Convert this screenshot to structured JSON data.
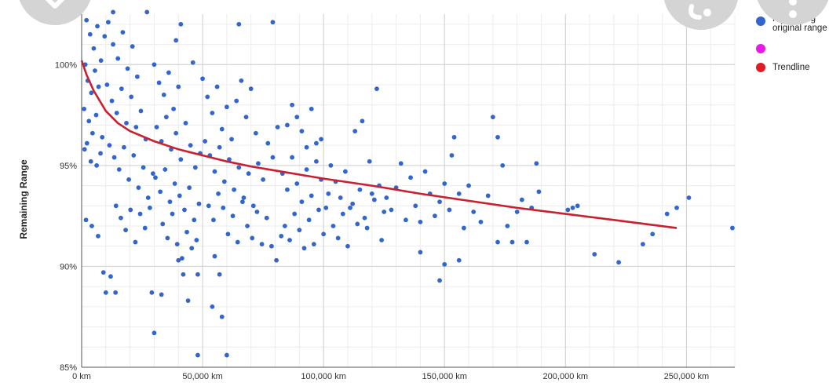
{
  "chart_data": {
    "type": "scatter",
    "title": "",
    "xlabel": "",
    "ylabel": "Remaining Range",
    "xlim": [
      0,
      270000
    ],
    "ylim": [
      85,
      102.5
    ],
    "x_ticks": [
      {
        "value": 0,
        "label": "0 km"
      },
      {
        "value": 50000,
        "label": "50,000 km"
      },
      {
        "value": 100000,
        "label": "100,000 km"
      },
      {
        "value": 150000,
        "label": "150,000 km"
      },
      {
        "value": 200000,
        "label": "200,000 km"
      },
      {
        "value": 250000,
        "label": "250,000 km"
      }
    ],
    "y_ticks": [
      {
        "value": 85,
        "label": "85%"
      },
      {
        "value": 90,
        "label": "90%"
      },
      {
        "value": 95,
        "label": "95%"
      },
      {
        "value": 100,
        "label": "100%"
      }
    ],
    "grid": true,
    "legend_position": "right",
    "legend": [
      {
        "label": "Remaining original range",
        "color": "#3366cc"
      },
      {
        "label": "",
        "color": "#e619e6"
      },
      {
        "label": "Trendline",
        "color": "#e01b24"
      }
    ],
    "series": [
      {
        "name": "Remaining original range",
        "color": "#3366cc",
        "points": [
          [
            2000,
            102.2
          ],
          [
            3500,
            101.5
          ],
          [
            5000,
            100.8
          ],
          [
            6500,
            101.9
          ],
          [
            8000,
            100.2
          ],
          [
            1500,
            100.0
          ],
          [
            2500,
            99.2
          ],
          [
            4000,
            98.6
          ],
          [
            5500,
            99.7
          ],
          [
            7000,
            98.9
          ],
          [
            1000,
            97.8
          ],
          [
            3000,
            97.2
          ],
          [
            4500,
            96.6
          ],
          [
            6000,
            97.5
          ],
          [
            8500,
            96.4
          ],
          [
            1200,
            95.8
          ],
          [
            2200,
            96.1
          ],
          [
            3800,
            95.2
          ],
          [
            6200,
            95.0
          ],
          [
            7800,
            95.6
          ],
          [
            1800,
            92.3
          ],
          [
            4200,
            92.0
          ],
          [
            6800,
            91.5
          ],
          [
            9000,
            89.7
          ],
          [
            10000,
            88.7
          ],
          [
            12000,
            89.5
          ],
          [
            14000,
            88.7
          ],
          [
            9500,
            101.4
          ],
          [
            11000,
            102.1
          ],
          [
            13000,
            101.0
          ],
          [
            15000,
            100.3
          ],
          [
            17000,
            101.6
          ],
          [
            19000,
            99.8
          ],
          [
            21000,
            100.9
          ],
          [
            23000,
            99.4
          ],
          [
            10500,
            99.0
          ],
          [
            12500,
            98.2
          ],
          [
            14500,
            97.6
          ],
          [
            16500,
            98.8
          ],
          [
            18500,
            97.1
          ],
          [
            20500,
            98.4
          ],
          [
            22500,
            96.9
          ],
          [
            24500,
            97.7
          ],
          [
            26500,
            96.3
          ],
          [
            11500,
            96.0
          ],
          [
            13500,
            95.4
          ],
          [
            15500,
            94.8
          ],
          [
            17500,
            95.9
          ],
          [
            19500,
            94.3
          ],
          [
            21500,
            95.5
          ],
          [
            23500,
            93.9
          ],
          [
            25500,
            94.9
          ],
          [
            27500,
            93.4
          ],
          [
            29500,
            94.6
          ],
          [
            14200,
            93.0
          ],
          [
            16200,
            92.4
          ],
          [
            18200,
            91.8
          ],
          [
            20200,
            92.8
          ],
          [
            22200,
            91.2
          ],
          [
            24200,
            92.6
          ],
          [
            26200,
            91.9
          ],
          [
            28200,
            92.9
          ],
          [
            13000,
            102.6
          ],
          [
            27000,
            102.6
          ],
          [
            30000,
            100.0
          ],
          [
            32000,
            99.1
          ],
          [
            34000,
            98.5
          ],
          [
            36000,
            99.6
          ],
          [
            38000,
            97.8
          ],
          [
            40000,
            98.9
          ],
          [
            31000,
            96.9
          ],
          [
            33000,
            96.2
          ],
          [
            35000,
            97.4
          ],
          [
            37000,
            95.8
          ],
          [
            39000,
            96.6
          ],
          [
            41000,
            95.3
          ],
          [
            43000,
            97.1
          ],
          [
            45000,
            96.0
          ],
          [
            47000,
            94.9
          ],
          [
            49000,
            95.6
          ],
          [
            30500,
            94.4
          ],
          [
            32500,
            93.7
          ],
          [
            34500,
            94.8
          ],
          [
            36500,
            93.2
          ],
          [
            38500,
            94.1
          ],
          [
            40500,
            93.5
          ],
          [
            42500,
            92.8
          ],
          [
            44500,
            93.9
          ],
          [
            46500,
            92.3
          ],
          [
            48500,
            93.1
          ],
          [
            33500,
            92.1
          ],
          [
            35500,
            91.4
          ],
          [
            37500,
            92.6
          ],
          [
            39500,
            91.1
          ],
          [
            41500,
            90.4
          ],
          [
            43500,
            91.7
          ],
          [
            45500,
            90.9
          ],
          [
            47500,
            91.3
          ],
          [
            40000,
            90.3
          ],
          [
            42000,
            89.6
          ],
          [
            48000,
            89.6
          ],
          [
            29000,
            88.7
          ],
          [
            33000,
            88.6
          ],
          [
            30000,
            86.7
          ],
          [
            44000,
            88.3
          ],
          [
            54000,
            88.0
          ],
          [
            58000,
            87.5
          ],
          [
            48000,
            85.6
          ],
          [
            60000,
            85.6
          ],
          [
            39000,
            101.2
          ],
          [
            41000,
            102.0
          ],
          [
            46000,
            100.1
          ],
          [
            50000,
            99.3
          ],
          [
            52000,
            98.4
          ],
          [
            54000,
            97.6
          ],
          [
            56000,
            98.9
          ],
          [
            58000,
            96.8
          ],
          [
            60000,
            97.9
          ],
          [
            62000,
            96.3
          ],
          [
            64000,
            98.2
          ],
          [
            66000,
            99.2
          ],
          [
            68000,
            97.4
          ],
          [
            70000,
            98.8
          ],
          [
            72000,
            96.6
          ],
          [
            51000,
            96.2
          ],
          [
            53000,
            95.5
          ],
          [
            55000,
            94.7
          ],
          [
            57000,
            95.9
          ],
          [
            59000,
            94.2
          ],
          [
            61000,
            95.3
          ],
          [
            63000,
            93.8
          ],
          [
            65000,
            94.9
          ],
          [
            67000,
            93.4
          ],
          [
            69000,
            94.6
          ],
          [
            71000,
            93.0
          ],
          [
            73000,
            95.1
          ],
          [
            75000,
            94.3
          ],
          [
            77000,
            96.1
          ],
          [
            79000,
            95.4
          ],
          [
            81000,
            96.9
          ],
          [
            52500,
            93.0
          ],
          [
            54500,
            92.3
          ],
          [
            56500,
            93.6
          ],
          [
            58500,
            92.9
          ],
          [
            60500,
            91.6
          ],
          [
            62500,
            92.5
          ],
          [
            64500,
            91.2
          ],
          [
            66500,
            93.2
          ],
          [
            68500,
            92.0
          ],
          [
            70500,
            91.4
          ],
          [
            72500,
            92.7
          ],
          [
            74500,
            91.1
          ],
          [
            76500,
            92.4
          ],
          [
            78500,
            91.0
          ],
          [
            80500,
            90.3
          ],
          [
            82500,
            91.5
          ],
          [
            65000,
            102.0
          ],
          [
            79000,
            102.1
          ],
          [
            55000,
            90.5
          ],
          [
            57000,
            89.6
          ],
          [
            83000,
            94.6
          ],
          [
            85000,
            93.8
          ],
          [
            87000,
            95.4
          ],
          [
            89000,
            94.1
          ],
          [
            91000,
            93.2
          ],
          [
            93000,
            94.8
          ],
          [
            95000,
            93.5
          ],
          [
            97000,
            96.1
          ],
          [
            99000,
            94.3
          ],
          [
            101000,
            92.9
          ],
          [
            84000,
            92.0
          ],
          [
            86000,
            91.3
          ],
          [
            88000,
            92.6
          ],
          [
            90000,
            91.8
          ],
          [
            92000,
            90.9
          ],
          [
            94000,
            92.3
          ],
          [
            96000,
            91.1
          ],
          [
            98000,
            92.8
          ],
          [
            100000,
            91.6
          ],
          [
            102000,
            93.6
          ],
          [
            85000,
            97.0
          ],
          [
            87000,
            98.0
          ],
          [
            89000,
            97.4
          ],
          [
            91000,
            96.7
          ],
          [
            93000,
            95.9
          ],
          [
            95000,
            97.8
          ],
          [
            97000,
            95.2
          ],
          [
            99000,
            96.3
          ],
          [
            103000,
            95.0
          ],
          [
            105000,
            94.2
          ],
          [
            107000,
            93.4
          ],
          [
            109000,
            94.7
          ],
          [
            111000,
            92.9
          ],
          [
            113000,
            96.7
          ],
          [
            115000,
            93.8
          ],
          [
            117000,
            92.4
          ],
          [
            119000,
            95.2
          ],
          [
            121000,
            93.3
          ],
          [
            123000,
            94.0
          ],
          [
            125000,
            92.7
          ],
          [
            104000,
            92.0
          ],
          [
            106000,
            91.4
          ],
          [
            108000,
            92.6
          ],
          [
            110000,
            91.0
          ],
          [
            112000,
            93.1
          ],
          [
            114000,
            92.1
          ],
          [
            116000,
            97.2
          ],
          [
            118000,
            91.9
          ],
          [
            120000,
            93.6
          ],
          [
            122000,
            98.8
          ],
          [
            124000,
            91.3
          ],
          [
            126000,
            93.4
          ],
          [
            128000,
            92.8
          ],
          [
            130000,
            93.9
          ],
          [
            132000,
            95.1
          ],
          [
            134000,
            92.3
          ],
          [
            136000,
            94.4
          ],
          [
            138000,
            93.0
          ],
          [
            140000,
            92.2
          ],
          [
            142000,
            94.7
          ],
          [
            144000,
            93.6
          ],
          [
            146000,
            92.5
          ],
          [
            148000,
            93.2
          ],
          [
            150000,
            94.1
          ],
          [
            152000,
            92.8
          ],
          [
            154000,
            96.4
          ],
          [
            156000,
            93.6
          ],
          [
            158000,
            91.9
          ],
          [
            160000,
            94.0
          ],
          [
            162000,
            92.7
          ],
          [
            140000,
            90.7
          ],
          [
            150000,
            90.1
          ],
          [
            153000,
            95.5
          ],
          [
            156000,
            90.3
          ],
          [
            148000,
            89.3
          ],
          [
            165000,
            92.2
          ],
          [
            168000,
            93.5
          ],
          [
            170000,
            97.4
          ],
          [
            172000,
            96.4
          ],
          [
            174000,
            95.0
          ],
          [
            176000,
            92.0
          ],
          [
            178000,
            91.2
          ],
          [
            180000,
            92.7
          ],
          [
            182000,
            93.3
          ],
          [
            184000,
            91.2
          ],
          [
            186000,
            92.9
          ],
          [
            188000,
            95.1
          ],
          [
            189000,
            93.7
          ],
          [
            172000,
            91.2
          ],
          [
            201000,
            92.8
          ],
          [
            203000,
            92.9
          ],
          [
            205000,
            93.0
          ],
          [
            212000,
            90.6
          ],
          [
            222000,
            90.2
          ],
          [
            232000,
            91.1
          ],
          [
            236000,
            91.6
          ],
          [
            242000,
            92.6
          ],
          [
            246000,
            92.9
          ],
          [
            251000,
            93.4
          ],
          [
            269000,
            91.9
          ]
        ]
      },
      {
        "name": "Trendline",
        "color": "#cc1f2e",
        "points": [
          [
            0,
            100.2
          ],
          [
            2000,
            99.5
          ],
          [
            5000,
            98.7
          ],
          [
            10000,
            97.7
          ],
          [
            15000,
            97.1
          ],
          [
            20000,
            96.7
          ],
          [
            30000,
            96.2
          ],
          [
            40000,
            95.8
          ],
          [
            50000,
            95.5
          ],
          [
            60000,
            95.2
          ],
          [
            70000,
            94.95
          ],
          [
            80000,
            94.75
          ],
          [
            100000,
            94.35
          ],
          [
            120000,
            94.0
          ],
          [
            140000,
            93.6
          ],
          [
            160000,
            93.25
          ],
          [
            180000,
            92.9
          ],
          [
            200000,
            92.6
          ],
          [
            220000,
            92.3
          ],
          [
            246000,
            91.9
          ]
        ]
      }
    ]
  }
}
